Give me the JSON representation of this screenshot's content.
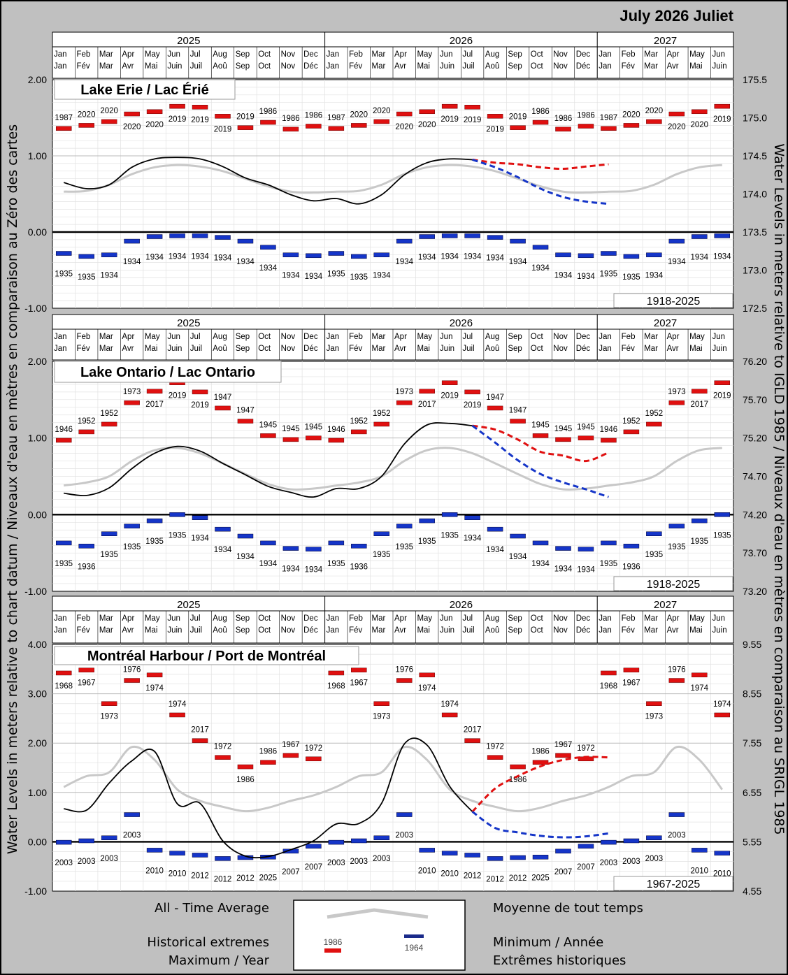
{
  "page_title": "July 2026 Juliet",
  "left_axis_label": "Water Levels in meters relative to chart datum / Niveaux d'eau en mètres en comparaison au Zéro des cartes",
  "right_axis_label": "Water Levels in meters relative to IGLD 1985 / Niveaux d'eau en mètres en comparaison au SRIGL 1985",
  "years": [
    "2025",
    "2026",
    "2027"
  ],
  "months_en": [
    "Jan",
    "Feb",
    "Mar",
    "Apr",
    "May",
    "Jun",
    "Jul",
    "Aug",
    "Sep",
    "Oct",
    "Nov",
    "Dec",
    "Jan",
    "Feb",
    "Mar",
    "Apr",
    "May",
    "Jun",
    "Jul",
    "Aug",
    "Sep",
    "Oct",
    "Nov",
    "Dec",
    "Jan",
    "Feb",
    "Mar",
    "Apr",
    "May",
    "Jun"
  ],
  "months_fr": [
    "Jan",
    "Fév",
    "Mar",
    "Avr",
    "Mai",
    "Juin",
    "Juil",
    "Aoû",
    "Sep",
    "Oct",
    "Nov",
    "Déc",
    "Jan",
    "Fév",
    "Mar",
    "Avr",
    "Mai",
    "Juin",
    "Juil",
    "Aoû",
    "Sep",
    "Oct",
    "Nov",
    "Déc",
    "Jan",
    "Fév",
    "Mar",
    "Avr",
    "Mai",
    "Juin"
  ],
  "colors": {
    "max_bar": "#e01010",
    "min_bar": "#1535c8",
    "average": "#c8c8c8",
    "recorded": "#000000",
    "forecast_high": "#e01010",
    "forecast_low": "#1535c8"
  },
  "legend": {
    "average_en": "All - Time Average",
    "average_fr": "Moyenne de tout temps",
    "extremes_en_1": "Historical extremes",
    "extremes_en_2": "Maximum / Year",
    "extremes_fr_1": "Minimum / Année",
    "extremes_fr_2": "Extrêmes historiques",
    "sample_max_year": "1986",
    "sample_min_year": "1964"
  },
  "chart_data": [
    {
      "type": "line",
      "title": "Lake Erie / Lac Érié",
      "period": "1918-2025",
      "ylim": [
        -1.0,
        2.0
      ],
      "y_ticks": [
        "2.00",
        "1.00",
        "0.00",
        "-1.00"
      ],
      "y2_ticks": [
        "175.5",
        "175.0",
        "174.5",
        "174.0",
        "173.5",
        "173.0",
        "172.5"
      ],
      "max_values": [
        1.36,
        1.4,
        1.45,
        1.55,
        1.58,
        1.65,
        1.64,
        1.52,
        1.37,
        1.44,
        1.35,
        1.39
      ],
      "max_years": [
        "1987",
        "2020",
        "2020",
        "2020",
        "2020",
        "2019",
        "2019",
        "2019",
        "2019",
        "1986",
        "1986",
        "1986"
      ],
      "max_year_below": [
        false,
        false,
        false,
        true,
        true,
        true,
        true,
        true,
        false,
        false,
        false,
        false
      ],
      "min_values": [
        -0.28,
        -0.32,
        -0.3,
        -0.12,
        -0.06,
        -0.05,
        -0.05,
        -0.07,
        -0.12,
        -0.2,
        -0.3,
        -0.31
      ],
      "min_years": [
        "1935",
        "1935",
        "1934",
        "1934",
        "1934",
        "1934",
        "1934",
        "1934",
        "1934",
        "1934",
        "1934",
        "1934"
      ],
      "average": [
        0.53,
        0.54,
        0.62,
        0.76,
        0.85,
        0.88,
        0.86,
        0.8,
        0.7,
        0.6,
        0.53,
        0.52
      ],
      "recorded": [
        0.65,
        0.57,
        0.62,
        0.85,
        0.96,
        0.98,
        0.96,
        0.86,
        0.71,
        0.62,
        0.49,
        0.41,
        0.44,
        0.37,
        0.49,
        0.75,
        0.91,
        0.96,
        0.95
      ],
      "forecast_high": [
        0.95,
        0.91,
        0.89,
        0.85,
        0.83,
        0.86,
        0.89
      ],
      "forecast_low": [
        0.95,
        0.85,
        0.72,
        0.57,
        0.46,
        0.4,
        0.37
      ]
    },
    {
      "type": "line",
      "title": "Lake Ontario / Lac Ontario",
      "period": "1918-2025",
      "ylim": [
        -1.0,
        2.0
      ],
      "y_ticks": [
        "2.00",
        "1.00",
        "0.00",
        "-1.00"
      ],
      "y2_ticks": [
        "76.20",
        "75.70",
        "75.20",
        "74.70",
        "74.20",
        "73.70",
        "73.20"
      ],
      "max_values": [
        0.97,
        1.08,
        1.18,
        1.46,
        1.61,
        1.72,
        1.6,
        1.39,
        1.22,
        1.03,
        0.98,
        1.0
      ],
      "max_years": [
        "1946",
        "1952",
        "1952",
        "1973",
        "2017",
        "2019",
        "2019",
        "1947",
        "1947",
        "1945",
        "1945",
        "1945"
      ],
      "max_year_below": [
        false,
        false,
        false,
        false,
        true,
        true,
        true,
        false,
        false,
        false,
        false,
        false
      ],
      "min_values": [
        -0.37,
        -0.41,
        -0.25,
        -0.15,
        -0.08,
        0.0,
        -0.04,
        -0.19,
        -0.28,
        -0.37,
        -0.44,
        -0.45
      ],
      "min_years": [
        "1935",
        "1936",
        "1935",
        "1935",
        "1935",
        "1935",
        "1934",
        "1934",
        "1934",
        "1934",
        "1934",
        "1934"
      ],
      "average": [
        0.38,
        0.42,
        0.5,
        0.7,
        0.84,
        0.87,
        0.8,
        0.67,
        0.53,
        0.4,
        0.33,
        0.34
      ],
      "recorded": [
        0.28,
        0.25,
        0.35,
        0.6,
        0.8,
        0.89,
        0.83,
        0.67,
        0.52,
        0.37,
        0.29,
        0.23,
        0.34,
        0.34,
        0.5,
        0.92,
        1.17,
        1.19,
        1.16
      ],
      "forecast_high": [
        1.16,
        1.11,
        0.98,
        0.82,
        0.77,
        0.7,
        0.81
      ],
      "forecast_low": [
        1.16,
        0.94,
        0.71,
        0.53,
        0.42,
        0.33,
        0.23
      ]
    },
    {
      "type": "line",
      "title": "Montréal Harbour / Port de Montréal",
      "period": "1967-2025",
      "ylim": [
        -1.0,
        4.0
      ],
      "y_ticks": [
        "4.00",
        "3.00",
        "2.00",
        "1.00",
        "0.00",
        "-1.00"
      ],
      "y2_ticks": [
        "9.55",
        "8.55",
        "7.55",
        "6.55",
        "5.55",
        "4.55"
      ],
      "max_values": [
        3.42,
        3.48,
        2.8,
        3.27,
        3.38,
        2.57,
        2.05,
        1.71,
        1.52,
        1.61,
        1.75,
        1.68
      ],
      "max_years": [
        "1968",
        "1967",
        "1973",
        "1976",
        "1974",
        "1974",
        "2017",
        "1972",
        "1986",
        "1986",
        "1967",
        "1972"
      ],
      "max_year_below": [
        true,
        true,
        true,
        false,
        true,
        false,
        false,
        false,
        true,
        false,
        false,
        false
      ],
      "min_values": [
        -0.01,
        0.02,
        0.08,
        0.55,
        -0.17,
        -0.23,
        -0.27,
        -0.34,
        -0.32,
        -0.31,
        -0.19,
        -0.09
      ],
      "min_years": [
        "2003",
        "2003",
        "2003",
        "2003",
        "2010",
        "2010",
        "2012",
        "2012",
        "2012",
        "2025",
        "2007",
        "2007"
      ],
      "average": [
        1.11,
        1.33,
        1.41,
        1.92,
        1.66,
        1.06,
        0.83,
        0.71,
        0.62,
        0.69,
        0.83,
        0.94
      ],
      "recorded": [
        0.67,
        0.64,
        1.19,
        1.64,
        1.83,
        0.77,
        0.78,
        0.02,
        -0.29,
        -0.3,
        -0.16,
        0.02,
        0.36,
        0.37,
        0.78,
        1.98,
        1.96,
        1.12,
        0.61
      ],
      "forecast_high": [
        0.61,
        1.08,
        1.33,
        1.53,
        1.66,
        1.72,
        1.71
      ],
      "forecast_low": [
        0.61,
        0.28,
        0.19,
        0.12,
        0.09,
        0.11,
        0.17
      ]
    }
  ]
}
